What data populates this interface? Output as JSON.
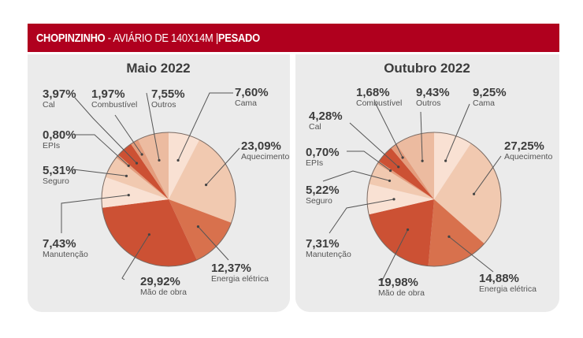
{
  "header": {
    "city": "CHOPINZINHO",
    "sep": " - ",
    "facility": "AVIÁRIO DE 140X14M",
    "pipe": " |",
    "category": "PESADO"
  },
  "colors": {
    "header_bg": "#b0001e",
    "panel_bg": "#ebebeb"
  },
  "chart_data": [
    {
      "type": "pie",
      "title": "Maio 2022",
      "start": "12 o'clock, clockwise",
      "slices": [
        {
          "label": "Cama",
          "value": 7.6,
          "text": "7,60%",
          "color": "#f9e1d3"
        },
        {
          "label": "Aquecimento",
          "value": 23.09,
          "text": "23,09%",
          "color": "#f1c9b0"
        },
        {
          "label": "Energia elétrica",
          "value": 12.37,
          "text": "12,37%",
          "color": "#d8714d"
        },
        {
          "label": "Mão de obra",
          "value": 29.92,
          "text": "29,92%",
          "color": "#cc5134"
        },
        {
          "label": "Manutenção",
          "value": 7.43,
          "text": "7,43%",
          "color": "#f9e1d3"
        },
        {
          "label": "Seguro",
          "value": 5.31,
          "text": "5,31%",
          "color": "#f1c9b0"
        },
        {
          "label": "EPIs",
          "value": 0.8,
          "text": "0,80%",
          "color": "#e49c7c"
        },
        {
          "label": "Cal",
          "value": 3.97,
          "text": "3,97%",
          "color": "#cc5134"
        },
        {
          "label": "Combustível",
          "value": 1.97,
          "text": "1,97%",
          "color": "#e49c7c"
        },
        {
          "label": "Outros",
          "value": 7.55,
          "text": "7,55%",
          "color": "#ecbba0"
        }
      ]
    },
    {
      "type": "pie",
      "title": "Outubro 2022",
      "start": "12 o'clock, clockwise",
      "slices": [
        {
          "label": "Cama",
          "value": 9.25,
          "text": "9,25%",
          "color": "#f9e1d3"
        },
        {
          "label": "Aquecimento",
          "value": 27.25,
          "text": "27,25%",
          "color": "#f1c9b0"
        },
        {
          "label": "Energia elétrica",
          "value": 14.88,
          "text": "14,88%",
          "color": "#d8714d"
        },
        {
          "label": "Mão de obra",
          "value": 19.98,
          "text": "19,98%",
          "color": "#cc5134"
        },
        {
          "label": "Manutenção",
          "value": 7.31,
          "text": "7,31%",
          "color": "#f9e1d3"
        },
        {
          "label": "Seguro",
          "value": 5.22,
          "text": "5,22%",
          "color": "#f1c9b0"
        },
        {
          "label": "EPIs",
          "value": 0.7,
          "text": "0,70%",
          "color": "#e49c7c"
        },
        {
          "label": "Cal",
          "value": 4.28,
          "text": "4,28%",
          "color": "#cc5134"
        },
        {
          "label": "Combustível",
          "value": 1.68,
          "text": "1,68%",
          "color": "#e49c7c"
        },
        {
          "label": "Outros",
          "value": 9.43,
          "text": "9,43%",
          "color": "#ecbba0"
        }
      ]
    }
  ]
}
